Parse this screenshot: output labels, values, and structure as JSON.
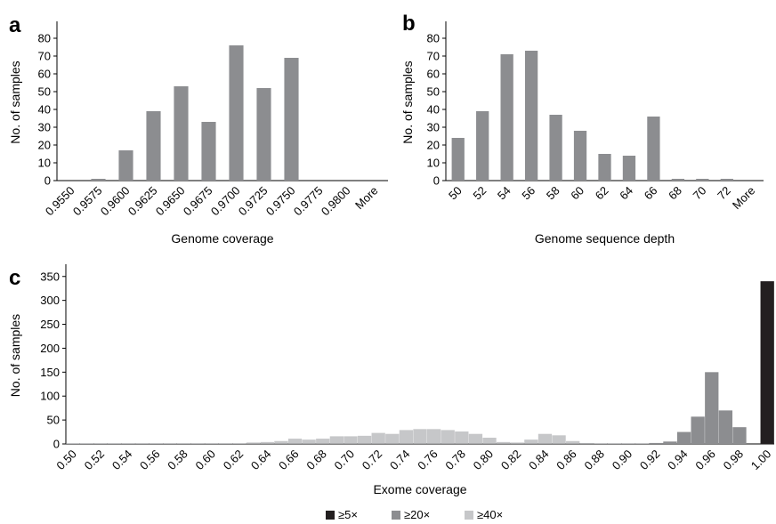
{
  "chart_data": [
    {
      "panel": "a",
      "type": "bar",
      "xlabel": "Genome coverage",
      "ylabel": "No. of samples",
      "categories": [
        "0.9550",
        "0.9575",
        "0.9600",
        "0.9625",
        "0.9650",
        "0.9675",
        "0.9700",
        "0.9725",
        "0.9750",
        "0.9775",
        "0.9800",
        "More"
      ],
      "values": [
        0,
        1,
        17,
        39,
        53,
        33,
        76,
        52,
        69,
        0,
        0,
        0
      ],
      "yticks": [
        0,
        10,
        20,
        30,
        40,
        50,
        60,
        70,
        80
      ],
      "ylim": [
        0,
        88
      ],
      "color": "#8c8d90",
      "grid": false
    },
    {
      "panel": "b",
      "type": "bar",
      "xlabel": "Genome sequence depth",
      "ylabel": "No. of samples",
      "categories": [
        "50",
        "52",
        "54",
        "56",
        "58",
        "60",
        "62",
        "64",
        "66",
        "68",
        "70",
        "72",
        "More"
      ],
      "values": [
        24,
        39,
        71,
        73,
        37,
        28,
        15,
        14,
        36,
        1,
        1,
        1,
        0
      ],
      "yticks": [
        0,
        10,
        20,
        30,
        40,
        50,
        60,
        70,
        80
      ],
      "ylim": [
        0,
        88
      ],
      "color": "#8c8d90",
      "grid": false
    },
    {
      "panel": "c",
      "type": "bar",
      "xlabel": "Exome coverage",
      "ylabel": "No. of samples",
      "categories": [
        "0.50",
        "0.51",
        "0.52",
        "0.53",
        "0.54",
        "0.55",
        "0.56",
        "0.57",
        "0.58",
        "0.59",
        "0.60",
        "0.61",
        "0.62",
        "0.63",
        "0.64",
        "0.65",
        "0.66",
        "0.67",
        "0.68",
        "0.69",
        "0.70",
        "0.71",
        "0.72",
        "0.73",
        "0.74",
        "0.75",
        "0.76",
        "0.77",
        "0.78",
        "0.79",
        "0.80",
        "0.81",
        "0.82",
        "0.83",
        "0.84",
        "0.85",
        "0.86",
        "0.87",
        "0.88",
        "0.89",
        "0.90",
        "0.91",
        "0.92",
        "0.93",
        "0.94",
        "0.95",
        "0.96",
        "0.97",
        "0.98",
        "0.99",
        "1.00"
      ],
      "tick_labels": [
        "0.50",
        "0.52",
        "0.54",
        "0.56",
        "0.58",
        "0.60",
        "0.62",
        "0.64",
        "0.66",
        "0.68",
        "0.70",
        "0.72",
        "0.74",
        "0.76",
        "0.78",
        "0.80",
        "0.82",
        "0.84",
        "0.86",
        "0.88",
        "0.90",
        "0.92",
        "0.94",
        "0.96",
        "0.98",
        "1.00"
      ],
      "series": [
        {
          "name": "≥5×",
          "color": "#231f20",
          "values": [
            0,
            0,
            0,
            0,
            0,
            0,
            0,
            0,
            0,
            0,
            0,
            0,
            0,
            0,
            0,
            0,
            0,
            0,
            0,
            0,
            0,
            0,
            0,
            0,
            0,
            0,
            0,
            0,
            0,
            0,
            0,
            0,
            0,
            0,
            0,
            0,
            0,
            0,
            0,
            0,
            0,
            0,
            0,
            0,
            0,
            0,
            0,
            0,
            0,
            0,
            340
          ]
        },
        {
          "name": "≥20×",
          "color": "#8c8d90",
          "values": [
            1,
            1,
            1,
            1,
            1,
            1,
            1,
            1,
            1,
            1,
            1,
            1,
            1,
            1,
            1,
            1,
            1,
            1,
            1,
            1,
            1,
            1,
            1,
            1,
            1,
            1,
            1,
            1,
            1,
            1,
            1,
            1,
            1,
            1,
            1,
            1,
            1,
            1,
            1,
            1,
            1,
            1,
            2,
            5,
            25,
            57,
            150,
            70,
            35,
            0,
            0
          ]
        },
        {
          "name": "≥40×",
          "color": "#c6c7c9",
          "values": [
            0,
            0,
            0,
            0,
            0,
            0,
            0,
            0,
            0,
            0,
            0,
            0,
            0,
            2,
            3,
            5,
            10,
            8,
            10,
            15,
            15,
            16,
            22,
            20,
            28,
            30,
            30,
            28,
            25,
            20,
            12,
            3,
            2,
            8,
            20,
            17,
            5,
            1,
            0,
            0,
            0,
            0,
            0,
            0,
            0,
            0,
            0,
            0,
            0,
            0,
            0
          ]
        }
      ],
      "yticks": [
        0,
        50,
        100,
        150,
        200,
        250,
        300,
        350
      ],
      "ylim": [
        0,
        370
      ],
      "legend_position": "bottom-center",
      "grid": false
    }
  ]
}
